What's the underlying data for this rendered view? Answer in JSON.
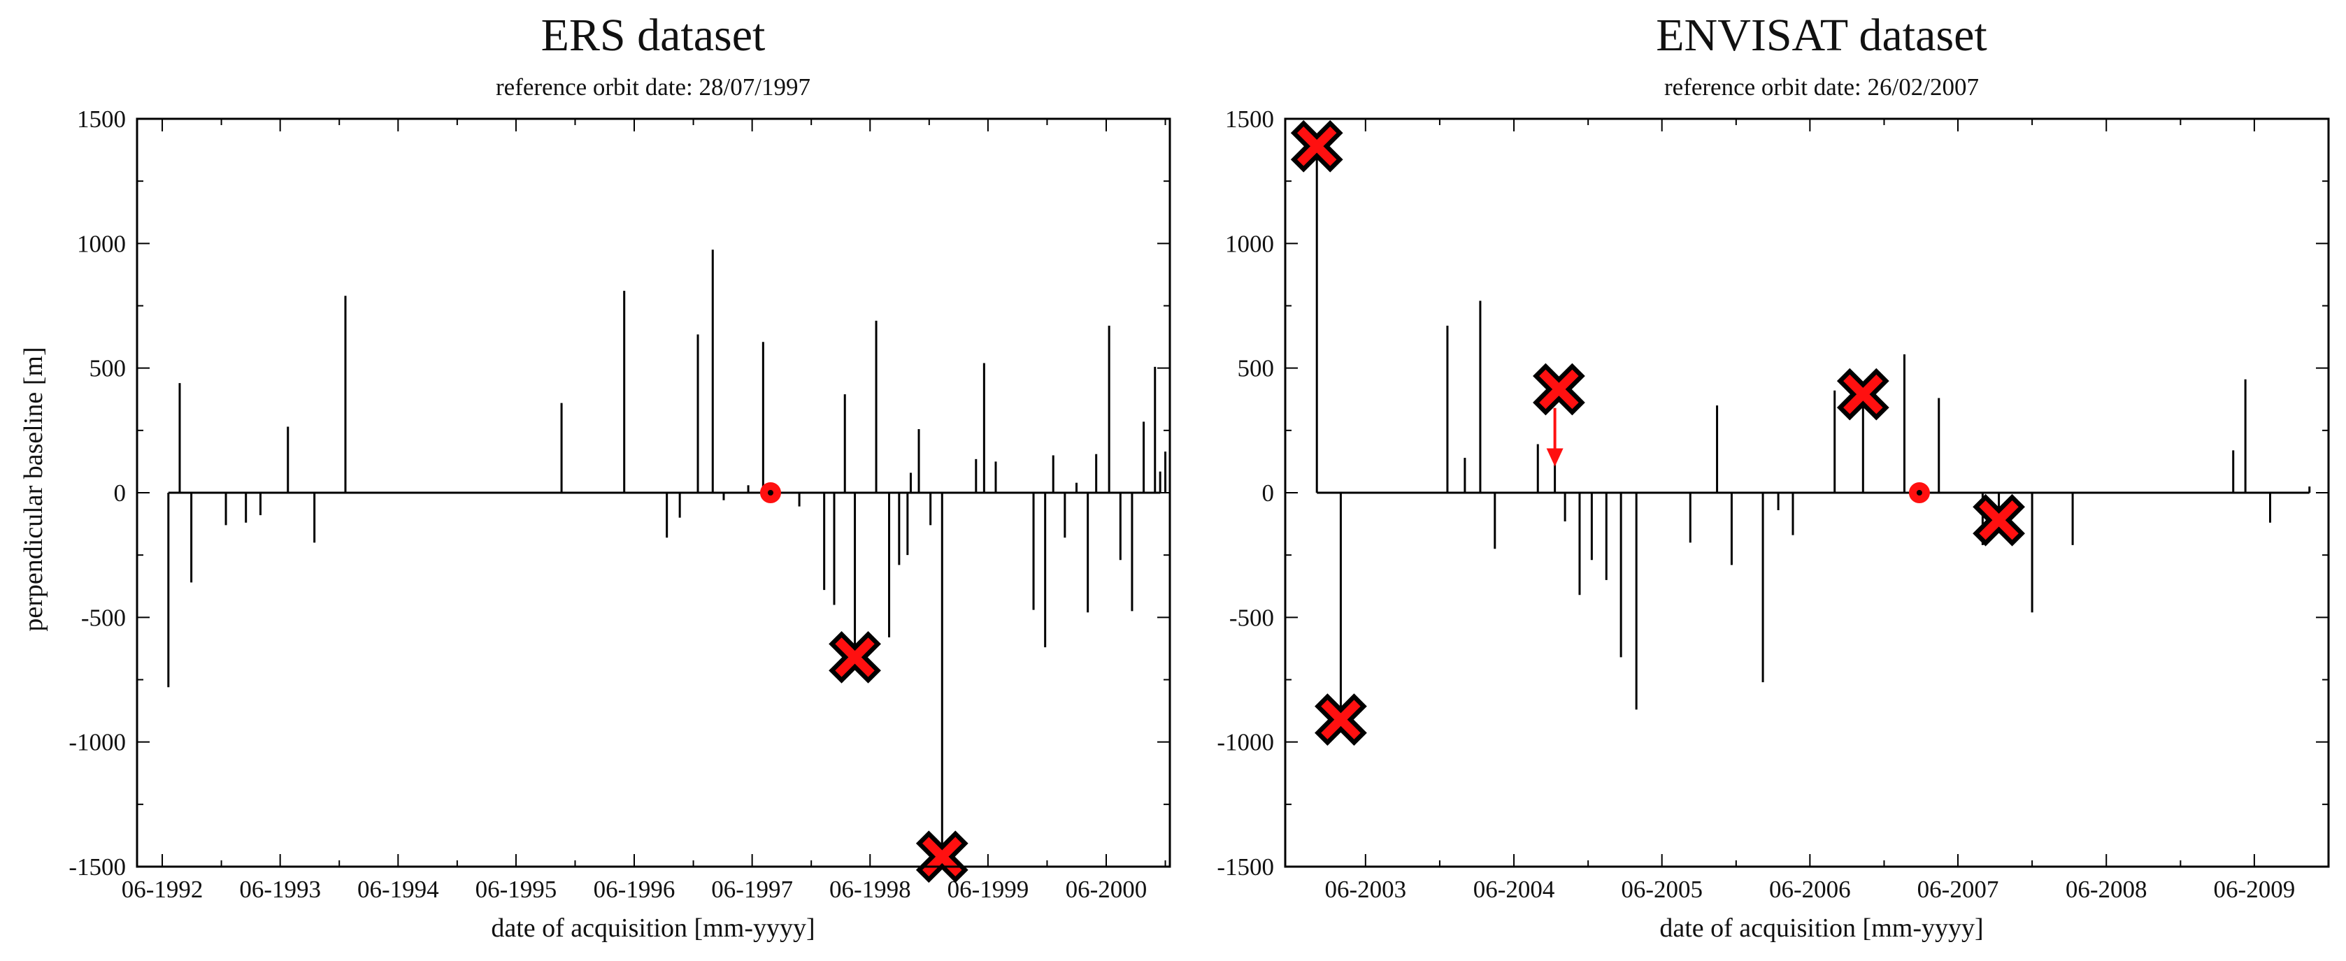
{
  "colors": {
    "marker_outline": "#000000",
    "marker_fill": "#ff1010",
    "axis": "#000000",
    "bar": "#000000",
    "arrow": "#ff1010"
  },
  "chart_data": [
    {
      "type": "bar",
      "title": "ERS dataset",
      "subtitle": "reference orbit date: 28/07/1997",
      "xlabel": "date of acquisition [mm-yyyy]",
      "ylabel": "perpendicular baseline [m]",
      "xlim": [
        "1992-03-15",
        "2000-12-15"
      ],
      "ylim": [
        -1500,
        1500
      ],
      "xticks": [
        "1992-06-01",
        "1993-06-01",
        "1994-06-01",
        "1995-06-01",
        "1996-06-01",
        "1997-06-01",
        "1998-06-01",
        "1999-06-01",
        "2000-06-01"
      ],
      "xtick_labels": [
        "06-1992",
        "06-1993",
        "06-1994",
        "06-1995",
        "06-1996",
        "06-1997",
        "06-1998",
        "06-1999",
        "06-2000"
      ],
      "yticks": [
        -1500,
        -1000,
        -500,
        0,
        500,
        1000,
        1500
      ],
      "ytick_labels": [
        "-1500",
        "-1000",
        "-500",
        "0",
        "500",
        "1000",
        "1500"
      ],
      "baseline_span": [
        "1992-06-20",
        "2000-11-15"
      ],
      "acquisitions": [
        {
          "date": "1992-06-20",
          "value": -780
        },
        {
          "date": "1992-07-25",
          "value": 440
        },
        {
          "date": "1992-08-30",
          "value": -360
        },
        {
          "date": "1992-12-15",
          "value": -130
        },
        {
          "date": "1993-02-15",
          "value": -120
        },
        {
          "date": "1993-04-01",
          "value": -90
        },
        {
          "date": "1993-06-25",
          "value": 265
        },
        {
          "date": "1993-09-15",
          "value": -200
        },
        {
          "date": "1993-12-20",
          "value": 790
        },
        {
          "date": "1995-10-20",
          "value": 360
        },
        {
          "date": "1996-05-01",
          "value": 810
        },
        {
          "date": "1996-09-10",
          "value": -180
        },
        {
          "date": "1996-10-20",
          "value": -100
        },
        {
          "date": "1996-12-15",
          "value": 635
        },
        {
          "date": "1997-01-30",
          "value": 975
        },
        {
          "date": "1997-03-05",
          "value": -30
        },
        {
          "date": "1997-05-20",
          "value": 30
        },
        {
          "date": "1997-07-05",
          "value": 605
        },
        {
          "date": "1997-10-25",
          "value": -55
        },
        {
          "date": "1998-01-10",
          "value": -390
        },
        {
          "date": "1998-02-10",
          "value": -450
        },
        {
          "date": "1998-03-15",
          "value": 395
        },
        {
          "date": "1998-04-15",
          "value": -650
        },
        {
          "date": "1998-06-20",
          "value": 690
        },
        {
          "date": "1998-07-30",
          "value": -580
        },
        {
          "date": "1998-08-30",
          "value": -290
        },
        {
          "date": "1998-09-25",
          "value": -250
        },
        {
          "date": "1998-10-05",
          "value": 80
        },
        {
          "date": "1998-10-30",
          "value": 255
        },
        {
          "date": "1998-12-05",
          "value": -130
        },
        {
          "date": "1999-01-10",
          "value": -1455
        },
        {
          "date": "1999-04-25",
          "value": 135
        },
        {
          "date": "1999-05-20",
          "value": 520
        },
        {
          "date": "1999-06-25",
          "value": 125
        },
        {
          "date": "1999-10-20",
          "value": -470
        },
        {
          "date": "1999-11-25",
          "value": -620
        },
        {
          "date": "1999-12-20",
          "value": 150
        },
        {
          "date": "2000-01-25",
          "value": -180
        },
        {
          "date": "2000-03-01",
          "value": 40
        },
        {
          "date": "2000-04-05",
          "value": -480
        },
        {
          "date": "2000-05-01",
          "value": 155
        },
        {
          "date": "2000-06-10",
          "value": 670
        },
        {
          "date": "2000-07-15",
          "value": -270
        },
        {
          "date": "2000-08-20",
          "value": -475
        },
        {
          "date": "2000-09-25",
          "value": 285
        },
        {
          "date": "2000-10-30",
          "value": 505
        },
        {
          "date": "2000-11-15",
          "value": 85
        },
        {
          "date": "2000-12-01",
          "value": 165
        }
      ],
      "reference": {
        "date": "1997-07-28",
        "value": 0
      },
      "rejected": [
        {
          "date": "1998-04-15",
          "value": -660
        },
        {
          "date": "1999-01-10",
          "value": -1460
        }
      ]
    },
    {
      "type": "bar",
      "title": "ENVISAT dataset",
      "subtitle": "reference orbit date: 26/02/2007",
      "xlabel": "date of acquisition [mm-yyyy]",
      "ylabel": "",
      "xlim": [
        "2002-11-15",
        "2009-12-01"
      ],
      "ylim": [
        -1500,
        1500
      ],
      "xticks": [
        "2003-06-01",
        "2004-06-01",
        "2005-06-01",
        "2006-06-01",
        "2007-06-01",
        "2008-06-01",
        "2009-06-01"
      ],
      "xtick_labels": [
        "06-2003",
        "06-2004",
        "06-2005",
        "06-2006",
        "06-2007",
        "06-2008",
        "06-2009"
      ],
      "yticks": [
        -1500,
        -1000,
        -500,
        0,
        500,
        1000,
        1500
      ],
      "ytick_labels": [
        "-1500",
        "-1000",
        "-500",
        "0",
        "500",
        "1000",
        "1500"
      ],
      "baseline_span": [
        "2003-02-01",
        "2009-10-15"
      ],
      "acquisitions": [
        {
          "date": "2003-02-01",
          "value": 1395
        },
        {
          "date": "2003-04-01",
          "value": -910
        },
        {
          "date": "2003-12-20",
          "value": 670
        },
        {
          "date": "2004-02-01",
          "value": 140
        },
        {
          "date": "2004-03-10",
          "value": 770
        },
        {
          "date": "2004-04-15",
          "value": -225
        },
        {
          "date": "2004-07-30",
          "value": 195
        },
        {
          "date": "2004-09-10",
          "value": 180
        },
        {
          "date": "2004-10-05",
          "value": -115
        },
        {
          "date": "2004-11-10",
          "value": -410
        },
        {
          "date": "2004-12-10",
          "value": -270
        },
        {
          "date": "2005-01-15",
          "value": -350
        },
        {
          "date": "2005-02-20",
          "value": -660
        },
        {
          "date": "2005-03-30",
          "value": -870
        },
        {
          "date": "2005-08-10",
          "value": -200
        },
        {
          "date": "2005-10-15",
          "value": 350
        },
        {
          "date": "2005-11-20",
          "value": -290
        },
        {
          "date": "2006-02-05",
          "value": -760
        },
        {
          "date": "2006-03-15",
          "value": -70
        },
        {
          "date": "2006-04-20",
          "value": -170
        },
        {
          "date": "2006-08-01",
          "value": 410
        },
        {
          "date": "2006-10-10",
          "value": 390
        },
        {
          "date": "2007-01-20",
          "value": 555
        },
        {
          "date": "2007-04-15",
          "value": 380
        },
        {
          "date": "2007-08-01",
          "value": -210
        },
        {
          "date": "2007-09-10",
          "value": -110
        },
        {
          "date": "2007-12-01",
          "value": -480
        },
        {
          "date": "2008-03-10",
          "value": -210
        },
        {
          "date": "2009-04-10",
          "value": 170
        },
        {
          "date": "2009-05-10",
          "value": 455
        },
        {
          "date": "2009-07-10",
          "value": -120
        },
        {
          "date": "2009-10-15",
          "value": 25
        }
      ],
      "reference": {
        "date": "2007-02-26",
        "value": 0
      },
      "rejected": [
        {
          "date": "2003-02-01",
          "value": 1390
        },
        {
          "date": "2003-04-01",
          "value": -910
        },
        {
          "date": "2004-09-20",
          "value": 415
        },
        {
          "date": "2006-10-10",
          "value": 395
        },
        {
          "date": "2007-09-10",
          "value": -110
        }
      ],
      "arrow": {
        "date": "2004-09-10",
        "from_value": 340,
        "to_value": 105
      }
    }
  ]
}
